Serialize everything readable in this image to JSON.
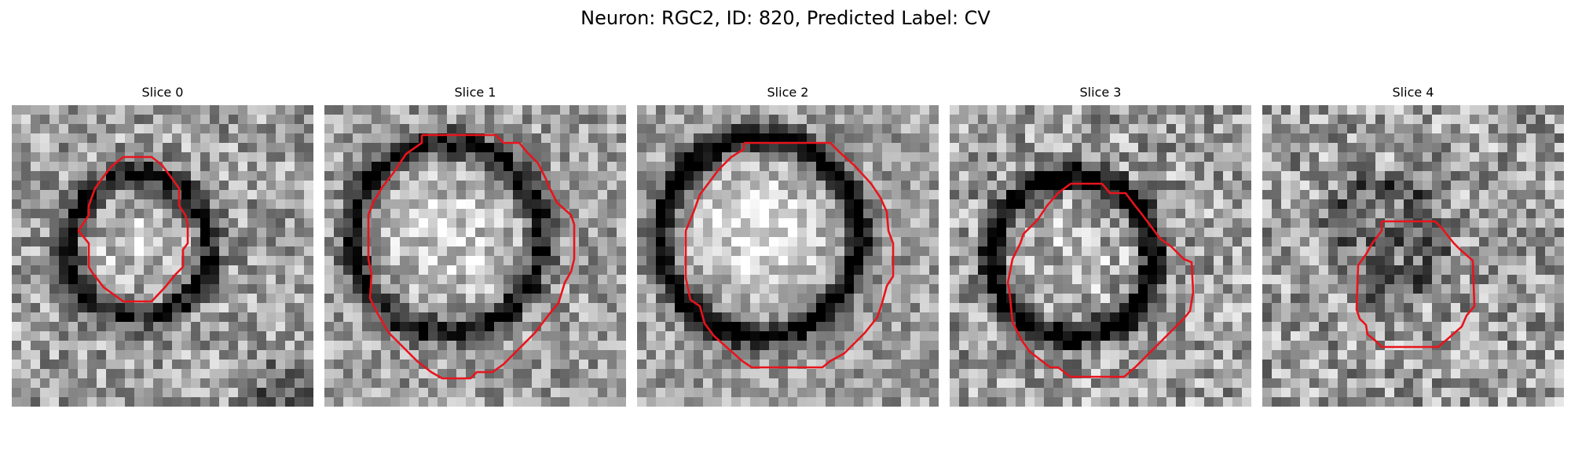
{
  "figure": {
    "title": "Neuron: RGC2, ID: 820, Predicted Label: CV"
  },
  "contour_color": "#e8141c",
  "slices": [
    {
      "label": "Slice 0",
      "seed": 11,
      "noise": 0.55,
      "ring_dark": 0.55,
      "inner_bright": 0.25,
      "dark_corner": "bottom-right"
    },
    {
      "label": "Slice 1",
      "seed": 23,
      "noise": 0.5,
      "ring_dark": 0.6,
      "inner_bright": 0.3,
      "dark_corner": "none"
    },
    {
      "label": "Slice 2",
      "seed": 37,
      "noise": 0.45,
      "ring_dark": 0.7,
      "inner_bright": 0.4,
      "dark_corner": "none"
    },
    {
      "label": "Slice 3",
      "seed": 41,
      "noise": 0.6,
      "ring_dark": 0.75,
      "inner_bright": 0.15,
      "dark_corner": "none"
    },
    {
      "label": "Slice 4",
      "seed": 53,
      "noise": 0.6,
      "ring_dark": 0.3,
      "inner_bright": -0.35,
      "dark_corner": "none"
    }
  ]
}
